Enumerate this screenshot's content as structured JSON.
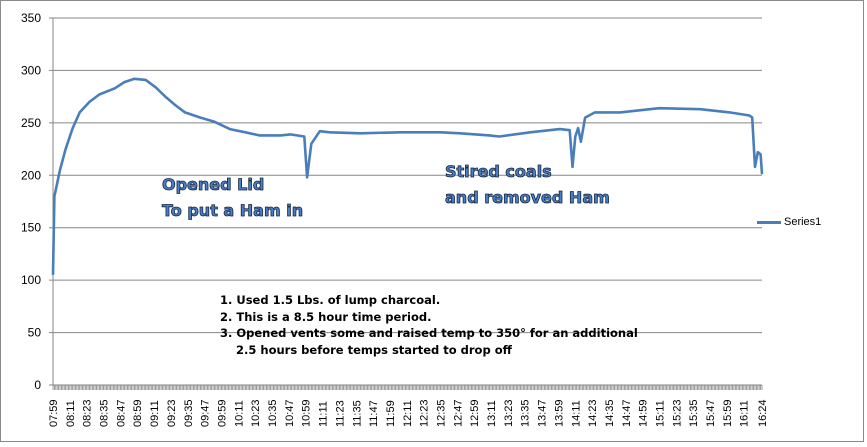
{
  "chart_data": {
    "type": "line",
    "title": "",
    "xlabel": "",
    "ylabel": "",
    "ylim": [
      0,
      350
    ],
    "yticks": [
      0,
      50,
      100,
      150,
      200,
      250,
      300,
      350
    ],
    "grid": true,
    "legend_placement": "right",
    "xtick_labels": [
      "07:59",
      "08:11",
      "08:23",
      "08:35",
      "08:47",
      "08:59",
      "09:11",
      "09:23",
      "09:35",
      "09:47",
      "09:59",
      "10:11",
      "10:23",
      "10:35",
      "10:47",
      "10:59",
      "11:11",
      "11:23",
      "11:35",
      "11:47",
      "11:59",
      "12:11",
      "12:23",
      "12:35",
      "12:47",
      "12:59",
      "13:11",
      "13:23",
      "13:35",
      "13:47",
      "13:59",
      "14:11",
      "14:23",
      "14:35",
      "14:47",
      "14:59",
      "15:11",
      "15:23",
      "15:35",
      "15:47",
      "15:59",
      "16:11",
      "16:24"
    ],
    "series": [
      {
        "name": "Series1",
        "color": "#4a7ebb",
        "points": [
          [
            "07:59",
            105
          ],
          [
            "08:00",
            180
          ],
          [
            "08:04",
            205
          ],
          [
            "08:08",
            225
          ],
          [
            "08:13",
            245
          ],
          [
            "08:18",
            260
          ],
          [
            "08:25",
            270
          ],
          [
            "08:32",
            277
          ],
          [
            "08:43",
            283
          ],
          [
            "08:50",
            289
          ],
          [
            "08:57",
            292
          ],
          [
            "09:05",
            291
          ],
          [
            "09:12",
            284
          ],
          [
            "09:19",
            275
          ],
          [
            "09:26",
            267
          ],
          [
            "09:33",
            260
          ],
          [
            "09:44",
            255
          ],
          [
            "09:54",
            251
          ],
          [
            "10:05",
            244
          ],
          [
            "10:16",
            241
          ],
          [
            "10:26",
            238
          ],
          [
            "10:41",
            238
          ],
          [
            "10:48",
            239
          ],
          [
            "10:58",
            237
          ],
          [
            "11:00",
            198
          ],
          [
            "11:03",
            230
          ],
          [
            "11:09",
            242
          ],
          [
            "11:16",
            241
          ],
          [
            "11:38",
            240
          ],
          [
            "12:06",
            241
          ],
          [
            "12:35",
            241
          ],
          [
            "12:49",
            240
          ],
          [
            "13:10",
            238
          ],
          [
            "13:17",
            237
          ],
          [
            "13:39",
            241
          ],
          [
            "14:00",
            244
          ],
          [
            "14:07",
            243
          ],
          [
            "14:09",
            208
          ],
          [
            "14:11",
            237
          ],
          [
            "14:13",
            245
          ],
          [
            "14:15",
            232
          ],
          [
            "14:18",
            255
          ],
          [
            "14:25",
            260
          ],
          [
            "14:43",
            260
          ],
          [
            "15:04",
            263
          ],
          [
            "15:11",
            264
          ],
          [
            "15:40",
            263
          ],
          [
            "16:01",
            260
          ],
          [
            "16:15",
            257
          ],
          [
            "16:17",
            255
          ],
          [
            "16:19",
            208
          ],
          [
            "16:21",
            222
          ],
          [
            "16:23",
            220
          ],
          [
            "16:24",
            201
          ]
        ]
      }
    ],
    "annotations": {
      "lid": [
        "Opened Lid",
        "To put a Ham in"
      ],
      "coals": [
        "Stired coals",
        "and removed Ham"
      ],
      "notes": [
        "1. Used 1.5 Lbs. of lump charcoal.",
        "2. This is a 8.5 hour time period.",
        "3. Opened vents some and raised temp to 350° for an additional",
        "2.5 hours before temps started to drop off"
      ]
    }
  }
}
